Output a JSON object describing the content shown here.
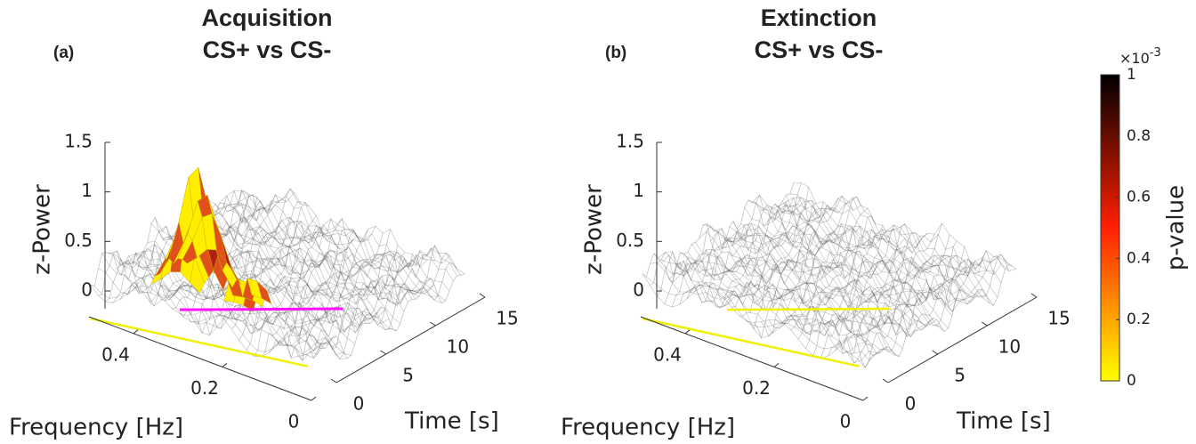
{
  "chart_data": [
    {
      "type": "surface",
      "panel": "(a)",
      "title": "Acquisition",
      "subtitle": "CS+ vs CS-",
      "zlabel": "z-Power",
      "xlabel": "Frequency [Hz]",
      "ylabel": "Time [s]",
      "xlim": [
        0,
        0.5
      ],
      "xticks": [
        0,
        0.2,
        0.4
      ],
      "ylim": [
        0,
        15
      ],
      "yticks": [
        0,
        5,
        10,
        15
      ],
      "zlim": [
        0,
        1.5
      ],
      "zticks": [
        0,
        0.5,
        1,
        1.5
      ]
    },
    {
      "type": "surface",
      "panel": "(b)",
      "title": "Extinction",
      "subtitle": "CS+ vs CS-",
      "zlabel": "z-Power",
      "xlabel": "Frequency [Hz]",
      "ylabel": "Time [s]",
      "xlim": [
        0,
        0.5
      ],
      "xticks": [
        0,
        0.2,
        0.4
      ],
      "ylim": [
        0,
        15
      ],
      "yticks": [
        0,
        5,
        10,
        15
      ],
      "zlim": [
        0,
        1.5
      ],
      "zticks": [
        0,
        0.5,
        1,
        1.5
      ]
    }
  ],
  "colorbar": {
    "label": "p-value",
    "multiplier": "×10",
    "exponent": "-3",
    "lim": [
      0,
      1
    ],
    "ticks": [
      0,
      0.2,
      0.4,
      0.6,
      0.8,
      1
    ],
    "colors": [
      "#ffff00",
      "#ff2000",
      "#000000"
    ]
  }
}
